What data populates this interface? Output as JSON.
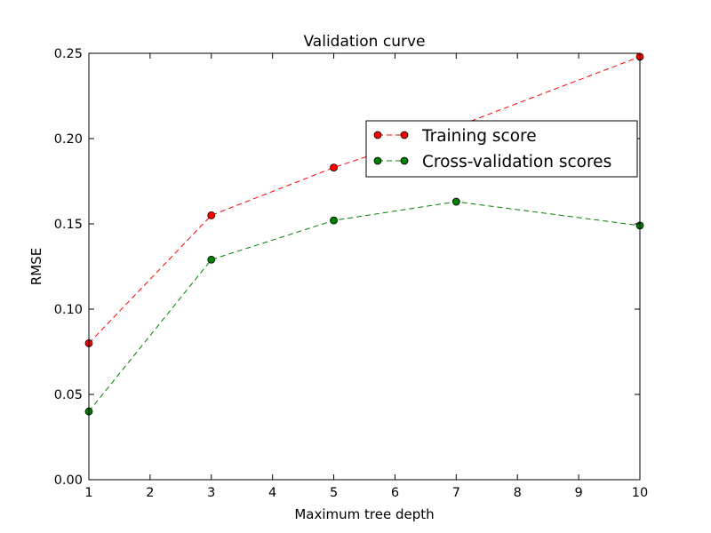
{
  "chart_data": {
    "type": "line",
    "title": "Validation curve",
    "xlabel": "Maximum tree depth",
    "ylabel": "RMSE",
    "xlim": [
      1,
      10
    ],
    "ylim": [
      0.0,
      0.25
    ],
    "xticks": [
      1,
      2,
      3,
      4,
      5,
      6,
      7,
      8,
      9,
      10
    ],
    "xtick_labels": [
      "1",
      "2",
      "3",
      "4",
      "5",
      "6",
      "7",
      "8",
      "9",
      "10"
    ],
    "yticks": [
      0.0,
      0.05,
      0.1,
      0.15,
      0.2,
      0.25
    ],
    "ytick_labels": [
      "0.00",
      "0.05",
      "0.10",
      "0.15",
      "0.20",
      "0.25"
    ],
    "grid": false,
    "legend_position": "upper-right",
    "series": [
      {
        "name": "Training score",
        "color": "#ff0000",
        "line_style": "dashed",
        "marker": "circle",
        "x": [
          1,
          3,
          5,
          7,
          10
        ],
        "y": [
          0.08,
          0.155,
          0.183,
          0.207,
          0.248
        ]
      },
      {
        "name": "Cross-validation scores",
        "color": "#008000",
        "line_style": "dashed",
        "marker": "circle",
        "x": [
          1,
          3,
          5,
          7,
          10
        ],
        "y": [
          0.04,
          0.129,
          0.152,
          0.163,
          0.149
        ]
      }
    ]
  }
}
